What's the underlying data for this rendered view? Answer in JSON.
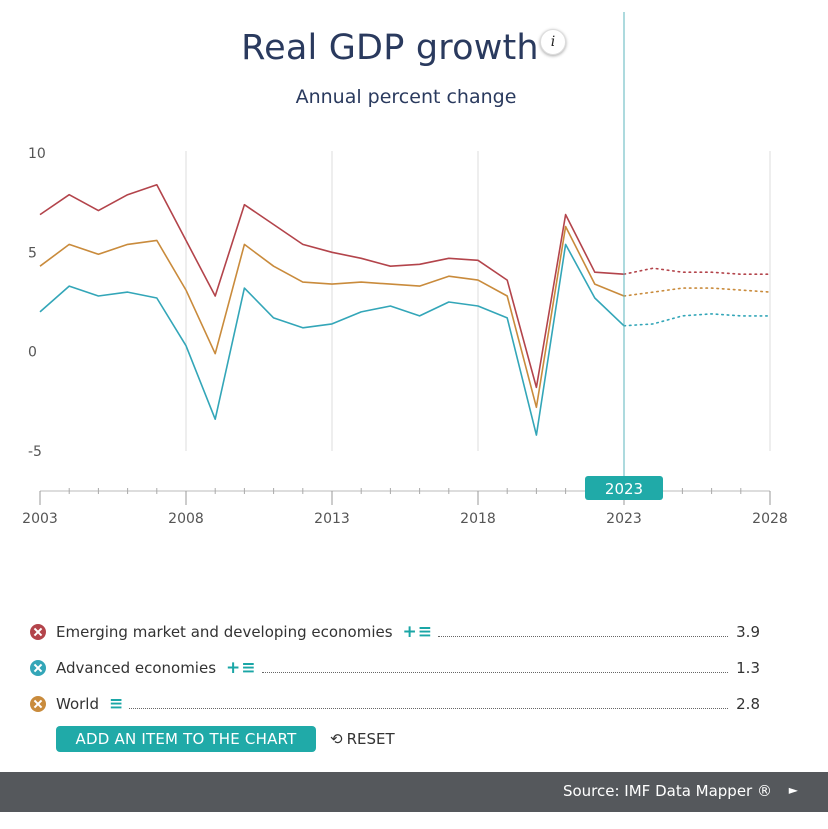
{
  "title": "Real GDP growth",
  "subtitle": "Annual percent change",
  "info_label": "i",
  "chart_data": {
    "type": "line",
    "xlim": [
      2003,
      2028
    ],
    "ylim": [
      -5,
      10
    ],
    "y_ticks": [
      10,
      5,
      0,
      -5
    ],
    "x_ticks": [
      2003,
      2008,
      2013,
      2018,
      2023,
      2028
    ],
    "selected_year": 2023,
    "projection_start": 2023,
    "x": [
      2003,
      2004,
      2005,
      2006,
      2007,
      2008,
      2009,
      2010,
      2011,
      2012,
      2013,
      2014,
      2015,
      2016,
      2017,
      2018,
      2019,
      2020,
      2021,
      2022,
      2023,
      2024,
      2025,
      2026,
      2027,
      2028
    ],
    "series": [
      {
        "name": "Emerging market and developing economies",
        "color": "#b3444b",
        "values": [
          6.9,
          7.9,
          7.1,
          7.9,
          8.4,
          5.6,
          2.8,
          7.4,
          6.4,
          5.4,
          5.0,
          4.7,
          4.3,
          4.4,
          4.7,
          4.6,
          3.6,
          -1.8,
          6.9,
          4.0,
          3.9,
          4.2,
          4.0,
          4.0,
          3.9,
          3.9
        ]
      },
      {
        "name": "Advanced economies",
        "color": "#33a6b8",
        "values": [
          2.0,
          3.3,
          2.8,
          3.0,
          2.7,
          0.3,
          -3.4,
          3.2,
          1.7,
          1.2,
          1.4,
          2.0,
          2.3,
          1.8,
          2.5,
          2.3,
          1.7,
          -4.2,
          5.4,
          2.7,
          1.3,
          1.4,
          1.8,
          1.9,
          1.8,
          1.8
        ]
      },
      {
        "name": "World",
        "color": "#c98b3c",
        "values": [
          4.3,
          5.4,
          4.9,
          5.4,
          5.6,
          3.1,
          -0.1,
          5.4,
          4.3,
          3.5,
          3.4,
          3.5,
          3.4,
          3.3,
          3.8,
          3.6,
          2.8,
          -2.8,
          6.3,
          3.4,
          2.8,
          3.0,
          3.2,
          3.2,
          3.1,
          3.0
        ]
      }
    ]
  },
  "legend": [
    {
      "name": "Emerging market and developing economies",
      "value": "3.9",
      "color": "#b3444b",
      "has_add": true
    },
    {
      "name": "Advanced economies",
      "value": "1.3",
      "color": "#33a6b8",
      "has_add": true
    },
    {
      "name": "World",
      "value": "2.8",
      "color": "#c98b3c",
      "has_add": false
    }
  ],
  "tools": {
    "add_icon": "+",
    "list_icon": "≡"
  },
  "add_button": "ADD AN ITEM TO THE CHART",
  "reset_button": "RESET",
  "reset_icon": "⟲",
  "footer": {
    "source": "Source: IMF Data Mapper ®",
    "arrow": "►"
  },
  "colors": {
    "accent": "#20aaa8",
    "title": "#2a3a5e",
    "footer_bg": "#55585c"
  }
}
